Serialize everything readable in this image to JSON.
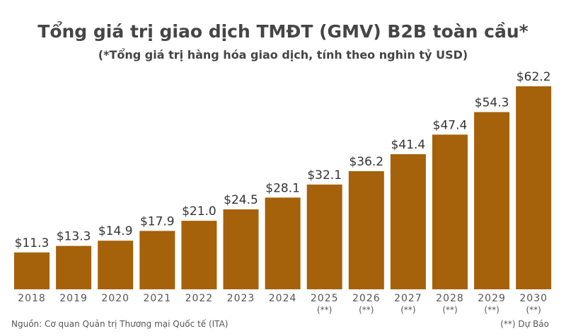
{
  "chart_data": {
    "type": "bar",
    "title": "Tổng giá trị giao dịch TMĐT (GMV) B2B toàn cầu*",
    "subtitle": "(*Tổng giá trị hàng hóa giao dịch, tính theo nghìn tỷ USD)",
    "categories": [
      "2018",
      "2019",
      "2020",
      "2021",
      "2022",
      "2023",
      "2024",
      "2025",
      "2026",
      "2027",
      "2028",
      "2029",
      "2030"
    ],
    "category_notes": [
      "",
      "",
      "",
      "",
      "",
      "",
      "",
      "(**)",
      "(**)",
      "(**)",
      "(**)",
      "(**)",
      "(**)"
    ],
    "values": [
      11.3,
      13.3,
      14.9,
      17.9,
      21.0,
      24.5,
      28.1,
      32.1,
      36.2,
      41.4,
      47.4,
      54.3,
      62.2
    ],
    "data_labels": [
      "$11.3",
      "$13.3",
      "$14.9",
      "$17.9",
      "$21.0",
      "$24.5",
      "$28.1",
      "$32.1",
      "$36.2",
      "$41.4",
      "$47.4",
      "$54.3",
      "$62.2"
    ],
    "ylim": [
      0,
      62.2
    ],
    "grid": false,
    "bar_color": "#a5620a",
    "source": "Nguồn: Cơ quan Quản trị Thương mại Quốc tế (ITA)",
    "note": "(**) Dự Báo"
  }
}
